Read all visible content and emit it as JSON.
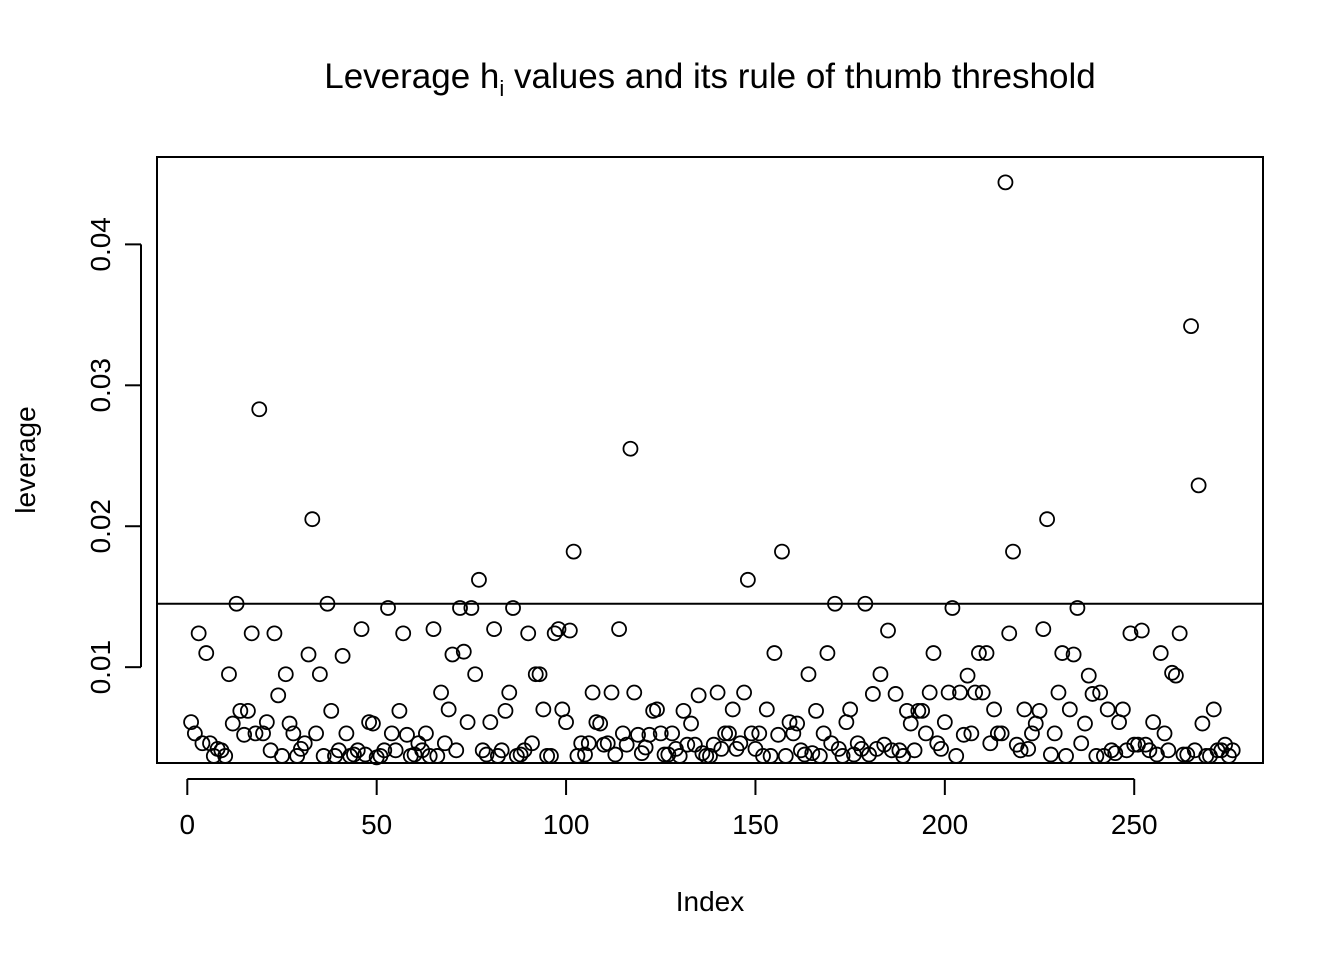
{
  "chart_data": {
    "type": "scatter",
    "title": {
      "prefix": "Leverage h",
      "subscript": "i",
      "suffix": " values and its rule of thumb threshold"
    },
    "xlabel": "Index",
    "ylabel": "leverage",
    "xlim": [
      -8,
      284
    ],
    "ylim": [
      0.0032,
      0.0462
    ],
    "x_ticks": [
      0,
      50,
      100,
      150,
      200,
      250
    ],
    "x_tick_labels": [
      "0",
      "50",
      "100",
      "150",
      "200",
      "250"
    ],
    "y_ticks": [
      0.01,
      0.02,
      0.03,
      0.04
    ],
    "y_tick_labels": [
      "0.01",
      "0.02",
      "0.03",
      "0.04"
    ],
    "threshold": 0.0145,
    "grid": false,
    "marker": "open-circle",
    "values": [
      0.0061,
      0.0053,
      0.0124,
      0.0046,
      0.011,
      0.0046,
      0.0037,
      0.0042,
      0.0041,
      0.0037,
      0.0095,
      0.006,
      0.0145,
      0.0069,
      0.0052,
      0.0069,
      0.0124,
      0.0053,
      0.0283,
      0.0053,
      0.0061,
      0.0041,
      0.0124,
      0.008,
      0.0037,
      0.0095,
      0.006,
      0.0053,
      0.0037,
      0.0042,
      0.0046,
      0.0109,
      0.0205,
      0.0053,
      0.0095,
      0.0037,
      0.0145,
      0.0069,
      0.0037,
      0.0041,
      0.0108,
      0.0053,
      0.0037,
      0.0038,
      0.0041,
      0.0127,
      0.0038,
      0.0061,
      0.006,
      0.0036,
      0.0037,
      0.0041,
      0.0142,
      0.0053,
      0.0041,
      0.0069,
      0.0124,
      0.0052,
      0.0037,
      0.0038,
      0.0046,
      0.0041,
      0.0053,
      0.0037,
      0.0127,
      0.0037,
      0.0082,
      0.0046,
      0.007,
      0.0109,
      0.0041,
      0.0142,
      0.0111,
      0.0061,
      0.0142,
      0.0095,
      0.0162,
      0.0041,
      0.0038,
      0.0061,
      0.0127,
      0.0037,
      0.0041,
      0.0069,
      0.0082,
      0.0142,
      0.0037,
      0.0038,
      0.0041,
      0.0124,
      0.0046,
      0.0095,
      0.0095,
      0.007,
      0.0037,
      0.0037,
      0.0124,
      0.0127,
      0.007,
      0.0061,
      0.0126,
      0.0182,
      0.0037,
      0.0046,
      0.0038,
      0.0046,
      0.0082,
      0.0061,
      0.006,
      0.0045,
      0.0046,
      0.0082,
      0.0038,
      0.0127,
      0.0053,
      0.0045,
      0.0255,
      0.0082,
      0.0052,
      0.0039,
      0.0043,
      0.0052,
      0.0069,
      0.007,
      0.0053,
      0.0038,
      0.0038,
      0.0053,
      0.0042,
      0.0037,
      0.0069,
      0.0045,
      0.006,
      0.0045,
      0.008,
      0.0039,
      0.0037,
      0.0037,
      0.0045,
      0.0082,
      0.0042,
      0.0053,
      0.0053,
      0.007,
      0.0042,
      0.0046,
      0.0082,
      0.0162,
      0.0053,
      0.0042,
      0.0053,
      0.0037,
      0.007,
      0.0037,
      0.011,
      0.0052,
      0.0182,
      0.0037,
      0.0061,
      0.0053,
      0.006,
      0.0041,
      0.0038,
      0.0095,
      0.0039,
      0.0069,
      0.0037,
      0.0053,
      0.011,
      0.0046,
      0.0145,
      0.0042,
      0.0037,
      0.0061,
      0.007,
      0.0038,
      0.0046,
      0.0042,
      0.0145,
      0.0038,
      0.0081,
      0.0042,
      0.0095,
      0.0045,
      0.0126,
      0.0041,
      0.0081,
      0.0041,
      0.0037,
      0.0069,
      0.006,
      0.0041,
      0.0069,
      0.0069,
      0.0053,
      0.0082,
      0.011,
      0.0046,
      0.0042,
      0.0061,
      0.0082,
      0.0142,
      0.0037,
      0.0082,
      0.0052,
      0.0094,
      0.0053,
      0.0082,
      0.011,
      0.0082,
      0.011,
      0.0046,
      0.007,
      0.0053,
      0.0053,
      0.0444,
      0.0124,
      0.0182,
      0.0045,
      0.0041,
      0.007,
      0.0042,
      0.0053,
      0.006,
      0.0069,
      0.0127,
      0.0205,
      0.0038,
      0.0053,
      0.0082,
      0.011,
      0.0037,
      0.007,
      0.0109,
      0.0142,
      0.0046,
      0.006,
      0.0094,
      0.0081,
      0.0037,
      0.0082,
      0.0037,
      0.007,
      0.0041,
      0.0039,
      0.0061,
      0.007,
      0.0041,
      0.0124,
      0.0045,
      0.0045,
      0.0126,
      0.0045,
      0.0041,
      0.0061,
      0.0038,
      0.011,
      0.0053,
      0.0041,
      0.0096,
      0.0094,
      0.0124,
      0.0038,
      0.0038,
      0.0342,
      0.0041,
      0.0229,
      0.006,
      0.0037,
      0.0037,
      0.007,
      0.0041,
      0.0041,
      0.0045,
      0.0037,
      0.0041
    ]
  }
}
